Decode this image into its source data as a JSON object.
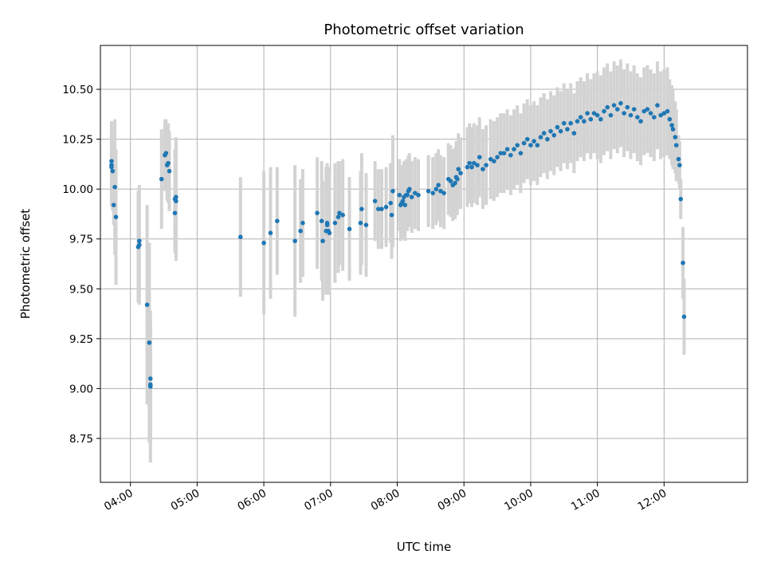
{
  "chart_data": {
    "type": "scatter",
    "title": "Photometric offset variation",
    "xlabel": "UTC time",
    "ylabel": "Photometric offset",
    "x_unit": "UTC time (HH:MM)",
    "xlim": [
      "03:33",
      "13:15"
    ],
    "ylim": [
      8.53,
      10.72
    ],
    "xticks": [
      "04:00",
      "05:00",
      "06:00",
      "07:00",
      "08:00",
      "09:00",
      "10:00",
      "11:00",
      "12:00"
    ],
    "yticks": [
      8.75,
      9.0,
      9.25,
      9.5,
      9.75,
      10.0,
      10.25,
      10.5
    ],
    "ytick_labels": [
      "8.75",
      "9.00",
      "9.25",
      "9.50",
      "9.75",
      "10.00",
      "10.25",
      "10.50"
    ],
    "grid": true,
    "marker_color": "#1f77b4",
    "errorbar_color": "#d3d3d3",
    "points": [
      {
        "x": "03:43",
        "y": 10.14,
        "err": 0.2
      },
      {
        "x": "03:43",
        "y": 10.11,
        "err": 0.2
      },
      {
        "x": "03:43",
        "y": 10.12,
        "err": 0.2
      },
      {
        "x": "03:44",
        "y": 10.09,
        "err": 0.2
      },
      {
        "x": "03:45",
        "y": 9.92,
        "err": 0.1
      },
      {
        "x": "03:46",
        "y": 10.01,
        "err": 0.34
      },
      {
        "x": "03:47",
        "y": 9.86,
        "err": 0.34
      },
      {
        "x": "04:07",
        "y": 9.71,
        "err": 0.28
      },
      {
        "x": "04:08",
        "y": 9.72,
        "err": 0.3
      },
      {
        "x": "04:08",
        "y": 9.74,
        "err": 0.25
      },
      {
        "x": "04:15",
        "y": 9.42,
        "err": 0.5
      },
      {
        "x": "04:17",
        "y": 9.23,
        "err": 0.5
      },
      {
        "x": "04:18",
        "y": 9.05,
        "err": 0.3
      },
      {
        "x": "04:18",
        "y": 9.02,
        "err": 0.3
      },
      {
        "x": "04:18",
        "y": 9.01,
        "err": 0.38
      },
      {
        "x": "04:28",
        "y": 10.05,
        "err": 0.25
      },
      {
        "x": "04:31",
        "y": 10.17,
        "err": 0.18
      },
      {
        "x": "04:32",
        "y": 10.18,
        "err": 0.17
      },
      {
        "x": "04:33",
        "y": 10.12,
        "err": 0.18
      },
      {
        "x": "04:34",
        "y": 10.13,
        "err": 0.2
      },
      {
        "x": "04:35",
        "y": 10.09,
        "err": 0.2
      },
      {
        "x": "04:40",
        "y": 9.95,
        "err": 0.25
      },
      {
        "x": "04:40",
        "y": 9.88,
        "err": 0.2
      },
      {
        "x": "04:41",
        "y": 9.94,
        "err": 0.3
      },
      {
        "x": "04:41",
        "y": 9.96,
        "err": 0.3
      },
      {
        "x": "05:39",
        "y": 9.76,
        "err": 0.3
      },
      {
        "x": "06:00",
        "y": 9.73,
        "err": 0.36
      },
      {
        "x": "06:06",
        "y": 9.78,
        "err": 0.33
      },
      {
        "x": "06:12",
        "y": 9.84,
        "err": 0.27
      },
      {
        "x": "06:28",
        "y": 9.74,
        "err": 0.38
      },
      {
        "x": "06:33",
        "y": 9.79,
        "err": 0.26
      },
      {
        "x": "06:35",
        "y": 9.83,
        "err": 0.27
      },
      {
        "x": "06:48",
        "y": 9.88,
        "err": 0.28
      },
      {
        "x": "06:52",
        "y": 9.84,
        "err": 0.3
      },
      {
        "x": "06:53",
        "y": 9.74,
        "err": 0.3
      },
      {
        "x": "06:56",
        "y": 9.79,
        "err": 0.32
      },
      {
        "x": "06:57",
        "y": 9.82,
        "err": 0.3
      },
      {
        "x": "06:57",
        "y": 9.83,
        "err": 0.3
      },
      {
        "x": "06:58",
        "y": 9.79,
        "err": 0.32
      },
      {
        "x": "06:59",
        "y": 9.78,
        "err": 0.3
      },
      {
        "x": "07:04",
        "y": 9.83,
        "err": 0.3
      },
      {
        "x": "07:07",
        "y": 9.86,
        "err": 0.28
      },
      {
        "x": "07:08",
        "y": 9.88,
        "err": 0.26
      },
      {
        "x": "07:11",
        "y": 9.87,
        "err": 0.28
      },
      {
        "x": "07:17",
        "y": 9.8,
        "err": 0.26
      },
      {
        "x": "07:27",
        "y": 9.83,
        "err": 0.26
      },
      {
        "x": "07:28",
        "y": 9.9,
        "err": 0.28
      },
      {
        "x": "07:32",
        "y": 9.82,
        "err": 0.26
      },
      {
        "x": "07:40",
        "y": 9.94,
        "err": 0.2
      },
      {
        "x": "07:43",
        "y": 9.9,
        "err": 0.2
      },
      {
        "x": "07:46",
        "y": 9.9,
        "err": 0.2
      },
      {
        "x": "07:50",
        "y": 9.91,
        "err": 0.2
      },
      {
        "x": "07:54",
        "y": 9.93,
        "err": 0.2
      },
      {
        "x": "07:55",
        "y": 9.87,
        "err": 0.22
      },
      {
        "x": "07:56",
        "y": 9.99,
        "err": 0.28
      },
      {
        "x": "08:02",
        "y": 9.97,
        "err": 0.18
      },
      {
        "x": "08:03",
        "y": 9.92,
        "err": 0.18
      },
      {
        "x": "08:04",
        "y": 9.93,
        "err": 0.18
      },
      {
        "x": "08:05",
        "y": 9.94,
        "err": 0.18
      },
      {
        "x": "08:06",
        "y": 9.96,
        "err": 0.18
      },
      {
        "x": "08:07",
        "y": 9.92,
        "err": 0.18
      },
      {
        "x": "08:08",
        "y": 9.97,
        "err": 0.18
      },
      {
        "x": "08:09",
        "y": 9.97,
        "err": 0.18
      },
      {
        "x": "08:10",
        "y": 9.99,
        "err": 0.18
      },
      {
        "x": "08:11",
        "y": 10.0,
        "err": 0.18
      },
      {
        "x": "08:13",
        "y": 9.96,
        "err": 0.18
      },
      {
        "x": "08:16",
        "y": 9.98,
        "err": 0.18
      },
      {
        "x": "08:19",
        "y": 9.97,
        "err": 0.18
      },
      {
        "x": "08:28",
        "y": 9.99,
        "err": 0.18
      },
      {
        "x": "08:32",
        "y": 9.98,
        "err": 0.18
      },
      {
        "x": "08:35",
        "y": 10.0,
        "err": 0.18
      },
      {
        "x": "08:37",
        "y": 10.02,
        "err": 0.18
      },
      {
        "x": "08:39",
        "y": 9.99,
        "err": 0.18
      },
      {
        "x": "08:42",
        "y": 9.98,
        "err": 0.18
      },
      {
        "x": "08:46",
        "y": 10.05,
        "err": 0.18
      },
      {
        "x": "08:48",
        "y": 10.04,
        "err": 0.18
      },
      {
        "x": "08:50",
        "y": 10.02,
        "err": 0.18
      },
      {
        "x": "08:52",
        "y": 10.03,
        "err": 0.18
      },
      {
        "x": "08:53",
        "y": 10.06,
        "err": 0.18
      },
      {
        "x": "08:54",
        "y": 10.05,
        "err": 0.18
      },
      {
        "x": "08:55",
        "y": 10.1,
        "err": 0.18
      },
      {
        "x": "08:57",
        "y": 10.08,
        "err": 0.18
      },
      {
        "x": "09:03",
        "y": 10.11,
        "err": 0.2
      },
      {
        "x": "09:05",
        "y": 10.13,
        "err": 0.2
      },
      {
        "x": "09:07",
        "y": 10.11,
        "err": 0.2
      },
      {
        "x": "09:09",
        "y": 10.13,
        "err": 0.2
      },
      {
        "x": "09:12",
        "y": 10.12,
        "err": 0.2
      },
      {
        "x": "09:14",
        "y": 10.16,
        "err": 0.2
      },
      {
        "x": "09:17",
        "y": 10.1,
        "err": 0.2
      },
      {
        "x": "09:20",
        "y": 10.12,
        "err": 0.2
      },
      {
        "x": "09:24",
        "y": 10.15,
        "err": 0.2
      },
      {
        "x": "09:27",
        "y": 10.14,
        "err": 0.2
      },
      {
        "x": "09:30",
        "y": 10.16,
        "err": 0.2
      },
      {
        "x": "09:33",
        "y": 10.18,
        "err": 0.2
      },
      {
        "x": "09:36",
        "y": 10.18,
        "err": 0.2
      },
      {
        "x": "09:39",
        "y": 10.2,
        "err": 0.2
      },
      {
        "x": "09:42",
        "y": 10.17,
        "err": 0.2
      },
      {
        "x": "09:45",
        "y": 10.2,
        "err": 0.2
      },
      {
        "x": "09:48",
        "y": 10.22,
        "err": 0.2
      },
      {
        "x": "09:51",
        "y": 10.18,
        "err": 0.2
      },
      {
        "x": "09:54",
        "y": 10.23,
        "err": 0.2
      },
      {
        "x": "09:57",
        "y": 10.25,
        "err": 0.2
      },
      {
        "x": "10:00",
        "y": 10.22,
        "err": 0.2
      },
      {
        "x": "10:03",
        "y": 10.24,
        "err": 0.2
      },
      {
        "x": "10:06",
        "y": 10.22,
        "err": 0.2
      },
      {
        "x": "10:09",
        "y": 10.26,
        "err": 0.2
      },
      {
        "x": "10:12",
        "y": 10.28,
        "err": 0.2
      },
      {
        "x": "10:15",
        "y": 10.25,
        "err": 0.2
      },
      {
        "x": "10:18",
        "y": 10.29,
        "err": 0.2
      },
      {
        "x": "10:21",
        "y": 10.27,
        "err": 0.2
      },
      {
        "x": "10:24",
        "y": 10.31,
        "err": 0.2
      },
      {
        "x": "10:27",
        "y": 10.29,
        "err": 0.2
      },
      {
        "x": "10:30",
        "y": 10.33,
        "err": 0.2
      },
      {
        "x": "10:33",
        "y": 10.3,
        "err": 0.2
      },
      {
        "x": "10:36",
        "y": 10.33,
        "err": 0.2
      },
      {
        "x": "10:39",
        "y": 10.28,
        "err": 0.2
      },
      {
        "x": "10:42",
        "y": 10.34,
        "err": 0.2
      },
      {
        "x": "10:45",
        "y": 10.36,
        "err": 0.2
      },
      {
        "x": "10:48",
        "y": 10.34,
        "err": 0.2
      },
      {
        "x": "10:51",
        "y": 10.38,
        "err": 0.2
      },
      {
        "x": "10:54",
        "y": 10.35,
        "err": 0.2
      },
      {
        "x": "10:57",
        "y": 10.38,
        "err": 0.2
      },
      {
        "x": "11:00",
        "y": 10.37,
        "err": 0.22
      },
      {
        "x": "11:03",
        "y": 10.35,
        "err": 0.22
      },
      {
        "x": "11:06",
        "y": 10.39,
        "err": 0.22
      },
      {
        "x": "11:09",
        "y": 10.41,
        "err": 0.22
      },
      {
        "x": "11:12",
        "y": 10.37,
        "err": 0.22
      },
      {
        "x": "11:15",
        "y": 10.42,
        "err": 0.22
      },
      {
        "x": "11:18",
        "y": 10.4,
        "err": 0.22
      },
      {
        "x": "11:21",
        "y": 10.43,
        "err": 0.22
      },
      {
        "x": "11:24",
        "y": 10.38,
        "err": 0.22
      },
      {
        "x": "11:27",
        "y": 10.41,
        "err": 0.22
      },
      {
        "x": "11:30",
        "y": 10.37,
        "err": 0.22
      },
      {
        "x": "11:33",
        "y": 10.4,
        "err": 0.22
      },
      {
        "x": "11:36",
        "y": 10.36,
        "err": 0.22
      },
      {
        "x": "11:39",
        "y": 10.34,
        "err": 0.22
      },
      {
        "x": "11:42",
        "y": 10.39,
        "err": 0.22
      },
      {
        "x": "11:45",
        "y": 10.4,
        "err": 0.22
      },
      {
        "x": "11:48",
        "y": 10.38,
        "err": 0.22
      },
      {
        "x": "11:51",
        "y": 10.36,
        "err": 0.22
      },
      {
        "x": "11:54",
        "y": 10.42,
        "err": 0.22
      },
      {
        "x": "11:57",
        "y": 10.37,
        "err": 0.22
      },
      {
        "x": "12:00",
        "y": 10.38,
        "err": 0.22
      },
      {
        "x": "12:03",
        "y": 10.39,
        "err": 0.22
      },
      {
        "x": "12:05",
        "y": 10.35,
        "err": 0.2
      },
      {
        "x": "12:07",
        "y": 10.32,
        "err": 0.2
      },
      {
        "x": "12:08",
        "y": 10.3,
        "err": 0.2
      },
      {
        "x": "12:10",
        "y": 10.26,
        "err": 0.18
      },
      {
        "x": "12:11",
        "y": 10.22,
        "err": 0.18
      },
      {
        "x": "12:13",
        "y": 10.15,
        "err": 0.12
      },
      {
        "x": "12:14",
        "y": 10.12,
        "err": 0.12
      },
      {
        "x": "12:15",
        "y": 9.95,
        "err": 0.1
      },
      {
        "x": "12:17",
        "y": 9.63,
        "err": 0.18
      },
      {
        "x": "12:18",
        "y": 9.36,
        "err": 0.19
      }
    ]
  }
}
